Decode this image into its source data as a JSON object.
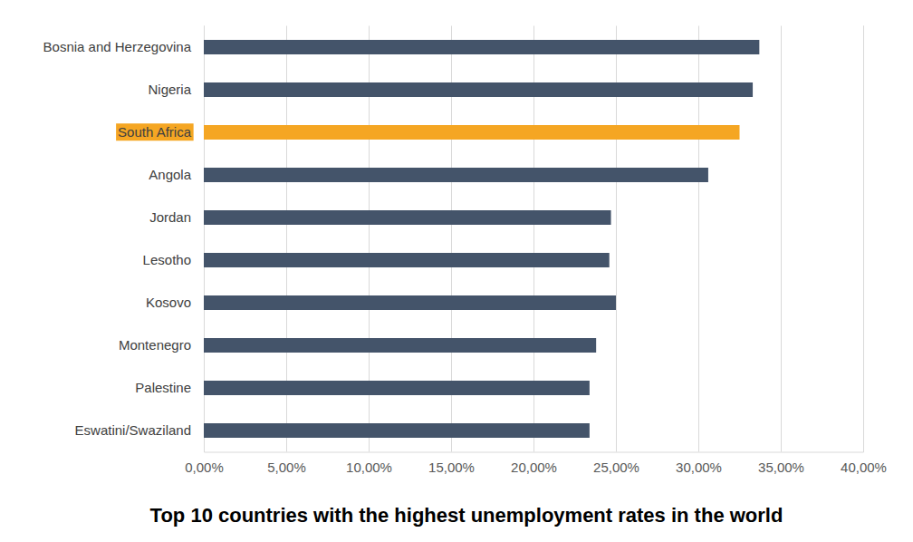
{
  "chart_data": {
    "type": "bar",
    "orientation": "horizontal",
    "title": "Top 10 countries with the highest unemployment rates in the world",
    "categories": [
      "Bosnia and Herzegovina",
      "Nigeria",
      "South Africa",
      "Angola",
      "Jordan",
      "Lesotho",
      "Kosovo",
      "Montenegro",
      "Palestine",
      "Eswatini/Swaziland"
    ],
    "values": [
      33.7,
      33.3,
      32.5,
      30.6,
      24.7,
      24.6,
      25.0,
      23.8,
      23.4,
      23.4
    ],
    "colors": [
      "#44546a",
      "#44546a",
      "#f5a623",
      "#44546a",
      "#44546a",
      "#44546a",
      "#44546a",
      "#44546a",
      "#44546a",
      "#44546a"
    ],
    "xlim": [
      0,
      40
    ],
    "xticks": [
      {
        "value": 0,
        "label": "0,00%"
      },
      {
        "value": 5,
        "label": "5,00%"
      },
      {
        "value": 10,
        "label": "10,00%"
      },
      {
        "value": 15,
        "label": "15,00%"
      },
      {
        "value": 20,
        "label": "20,00%"
      },
      {
        "value": 25,
        "label": "25,00%"
      },
      {
        "value": 30,
        "label": "30,00%"
      },
      {
        "value": 35,
        "label": "35,00%"
      },
      {
        "value": 40,
        "label": "40,00%"
      }
    ],
    "grid": true
  }
}
